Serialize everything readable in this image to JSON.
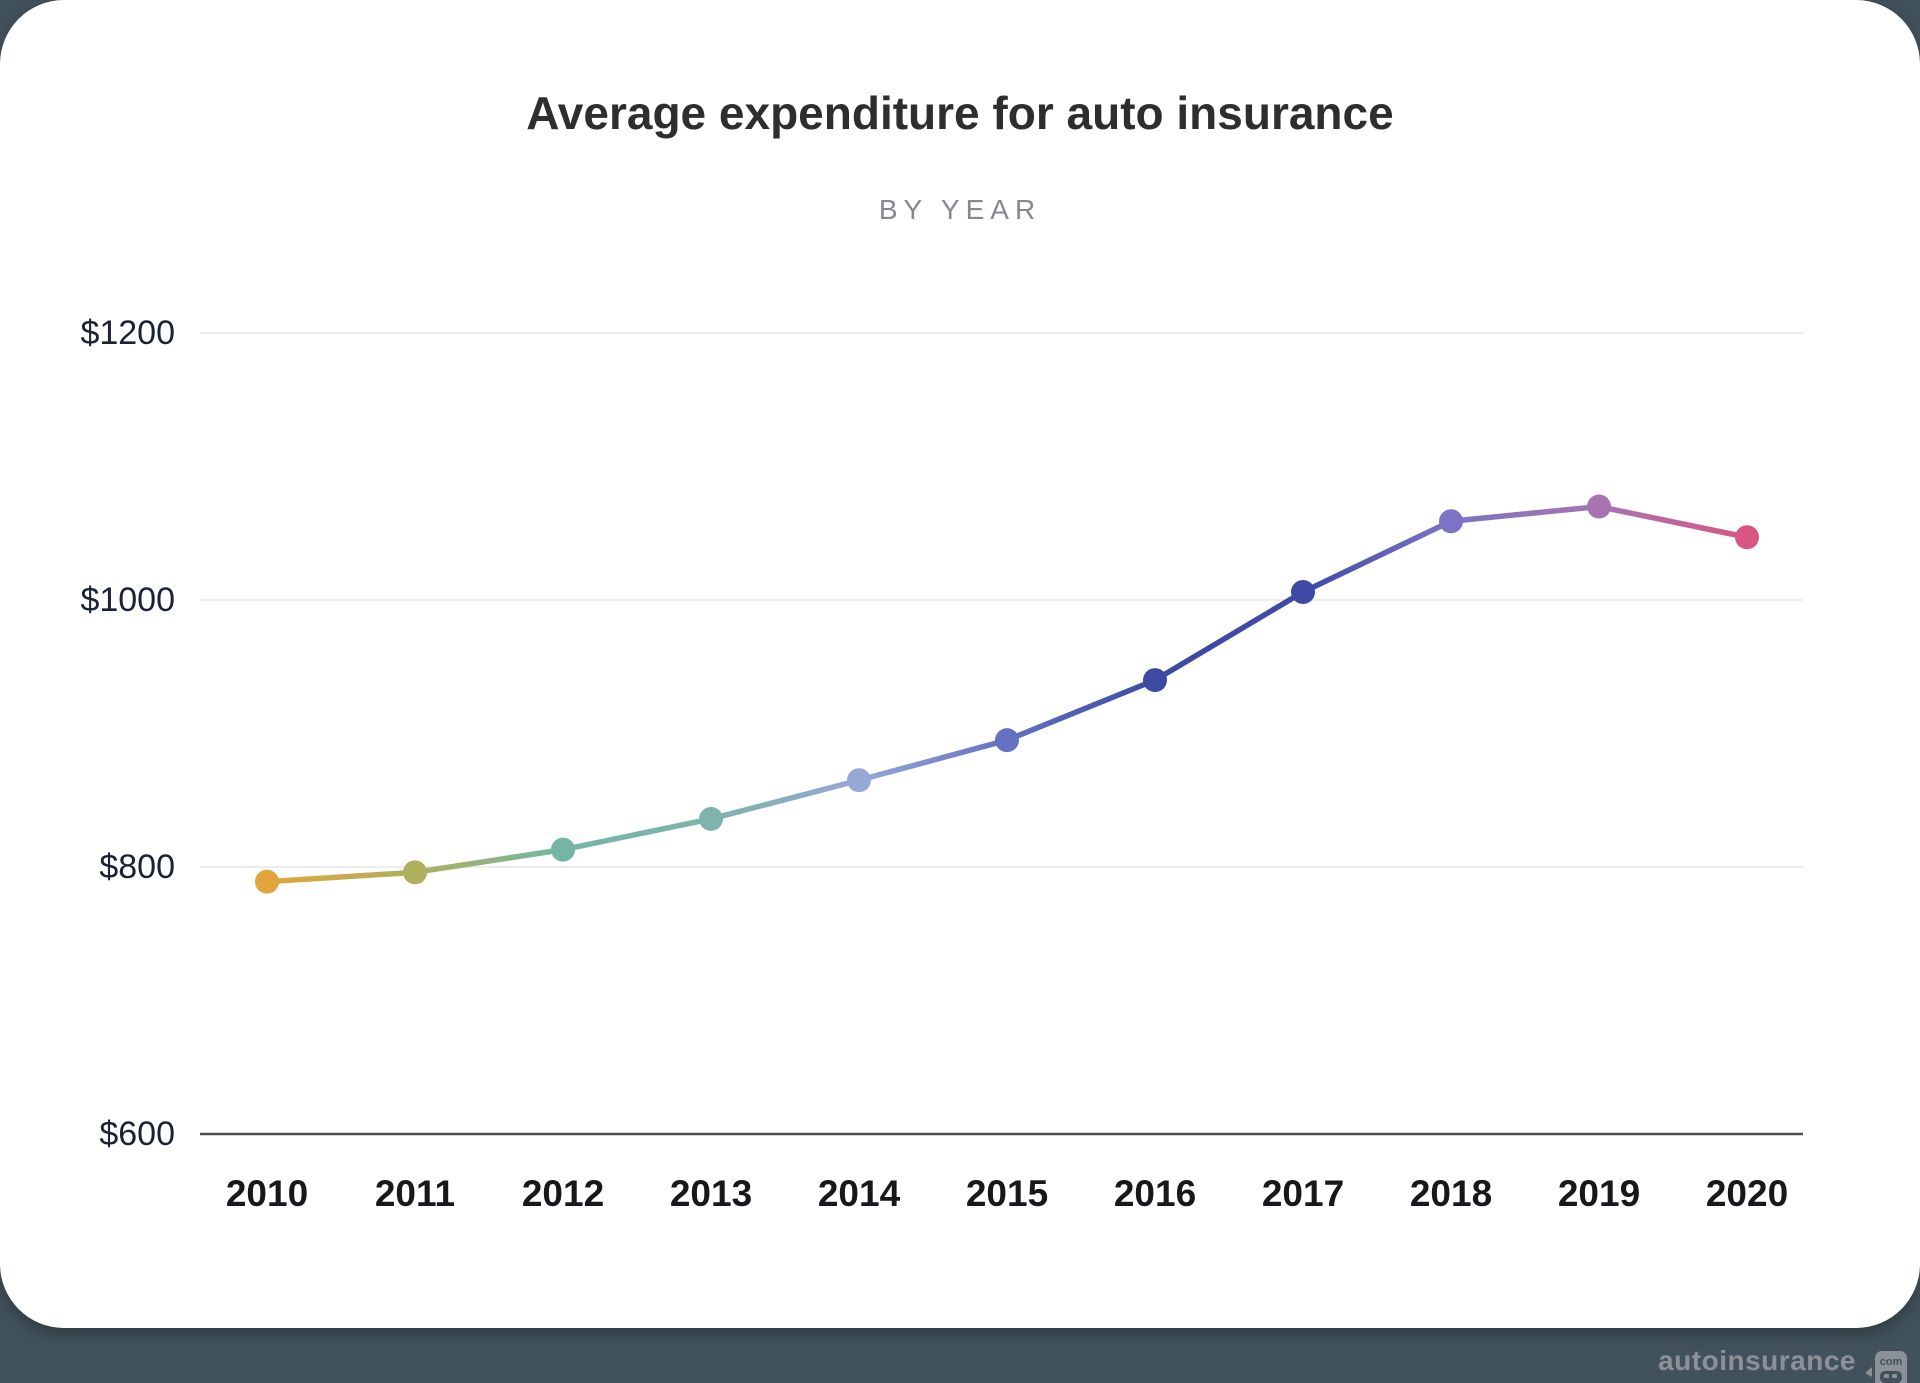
{
  "page": {
    "background_color": "#42525C",
    "card_color": "#FFFFFF"
  },
  "chart_data": {
    "type": "line",
    "title": "Average expenditure for auto insurance",
    "subtitle": "BY YEAR",
    "x": [
      "2010",
      "2011",
      "2012",
      "2013",
      "2014",
      "2015",
      "2016",
      "2017",
      "2018",
      "2019",
      "2020"
    ],
    "series": [
      {
        "name": "Average expenditure for auto insurance (USD)",
        "values": [
          789,
          796,
          813,
          836,
          865,
          895,
          940,
          1006,
          1059,
          1070,
          1047
        ]
      }
    ],
    "point_colors": [
      "#E2A43C",
      "#AEB05E",
      "#74B6A3",
      "#7FB3AC",
      "#96A7D8",
      "#6571C1",
      "#3E49A4",
      "#4149A5",
      "#7B74C4",
      "#A873B0",
      "#D85684"
    ],
    "yticks": [
      {
        "label": "$1200",
        "value": 1200
      },
      {
        "label": "$1000",
        "value": 1000
      },
      {
        "label": "$800",
        "value": 800
      },
      {
        "label": "$600",
        "value": 600
      }
    ],
    "ylim": [
      600,
      1200
    ],
    "xlabel": "",
    "ylabel": "",
    "grid": true,
    "legend": false,
    "style": {
      "grid_color": "#EDEDED",
      "axis_color": "#4E4E52",
      "ytick_color": "#1B2236",
      "xtick_color": "#18181C"
    }
  },
  "watermark": {
    "brand": "autoinsurance",
    "badge_text": "com",
    "color": "#8C9097"
  }
}
